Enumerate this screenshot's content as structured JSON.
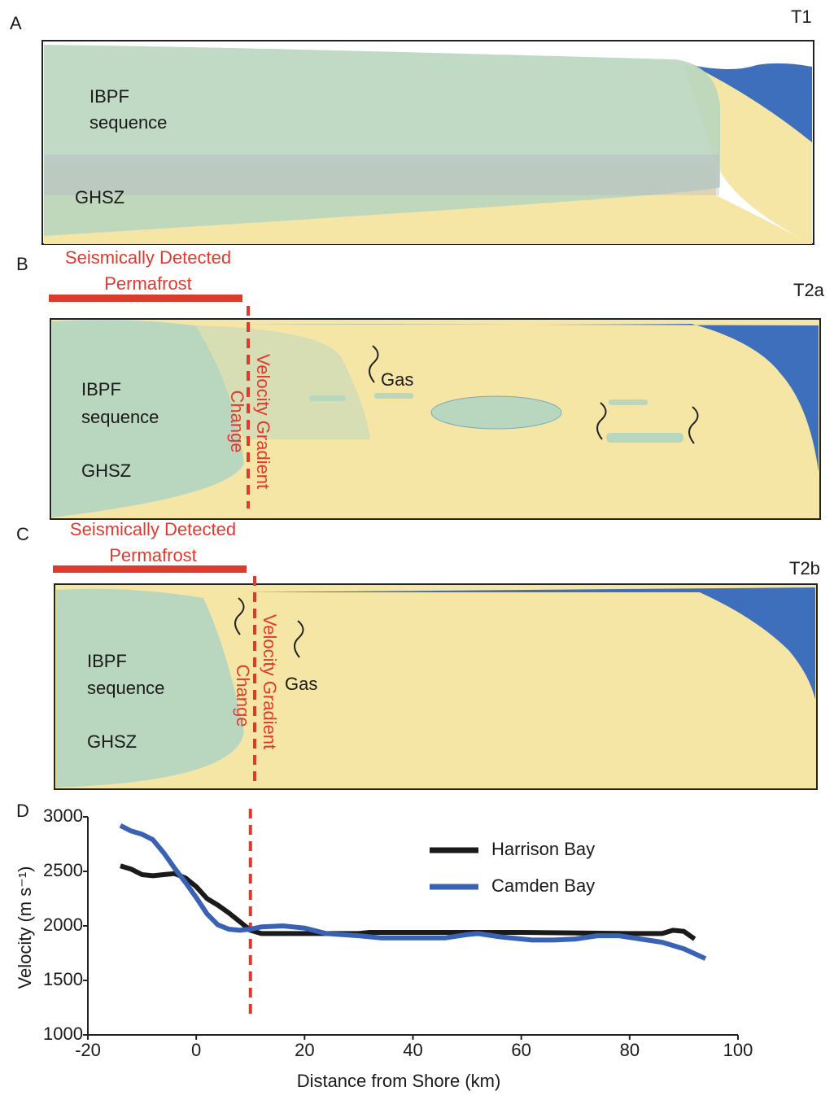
{
  "panels": [
    {
      "letter": "A",
      "stage": "T1",
      "unit_lines": [
        "IBPF",
        "sequence"
      ],
      "zone": "GHSZ"
    },
    {
      "letter": "B",
      "stage": "T2a",
      "unit_lines": [
        "IBPF",
        "sequence"
      ],
      "zone": "GHSZ",
      "permafrost_lines": [
        "Seismically Detected",
        "Permafrost"
      ],
      "gradient_lines": [
        "Velocity Gradient",
        "Change"
      ],
      "gas": "Gas"
    },
    {
      "letter": "C",
      "stage": "T2b",
      "unit_lines": [
        "IBPF",
        "sequence"
      ],
      "zone": "GHSZ",
      "permafrost_lines": [
        "Seismically Detected",
        "Permafrost"
      ],
      "gradient_lines": [
        "Velocity Gradient",
        "Change"
      ],
      "gas": "Gas"
    }
  ],
  "chart_data": {
    "type": "line",
    "letter": "D",
    "xlabel": "Distance from Shore (km)",
    "ylabel": "Velocity (m s⁻¹)",
    "xlim": [
      -20,
      100
    ],
    "xticks": [
      -20,
      0,
      20,
      40,
      60,
      80,
      100
    ],
    "ylim": [
      1000,
      3000
    ],
    "yticks": [
      1000,
      1500,
      2000,
      2500,
      3000
    ],
    "vline_x": 10,
    "vline_color": "#e03a2f",
    "series": [
      {
        "name": "Harrison Bay",
        "color": "#1a1a1a",
        "x": [
          -14,
          -12,
          -10,
          -8,
          -6,
          -4,
          -2,
          0,
          2,
          4,
          6,
          8,
          10,
          12,
          20,
          30,
          32,
          40,
          60,
          80,
          86,
          88,
          90,
          92
        ],
        "values": [
          2550,
          2520,
          2470,
          2460,
          2470,
          2480,
          2440,
          2360,
          2250,
          2190,
          2120,
          2040,
          1960,
          1930,
          1930,
          1930,
          1940,
          1940,
          1940,
          1930,
          1930,
          1960,
          1950,
          1880
        ]
      },
      {
        "name": "Camden Bay",
        "color": "#3a62b4",
        "x": [
          -14,
          -12,
          -10,
          -8,
          -6,
          -4,
          -2,
          0,
          2,
          4,
          6,
          8,
          10,
          12,
          16,
          20,
          24,
          30,
          34,
          40,
          46,
          50,
          52,
          56,
          62,
          66,
          70,
          74,
          78,
          82,
          86,
          90,
          94
        ],
        "values": [
          2920,
          2870,
          2840,
          2790,
          2670,
          2530,
          2400,
          2260,
          2110,
          2010,
          1970,
          1960,
          1970,
          1990,
          2000,
          1980,
          1930,
          1910,
          1890,
          1890,
          1890,
          1920,
          1930,
          1900,
          1870,
          1870,
          1880,
          1910,
          1910,
          1880,
          1850,
          1790,
          1700
        ]
      }
    ]
  }
}
